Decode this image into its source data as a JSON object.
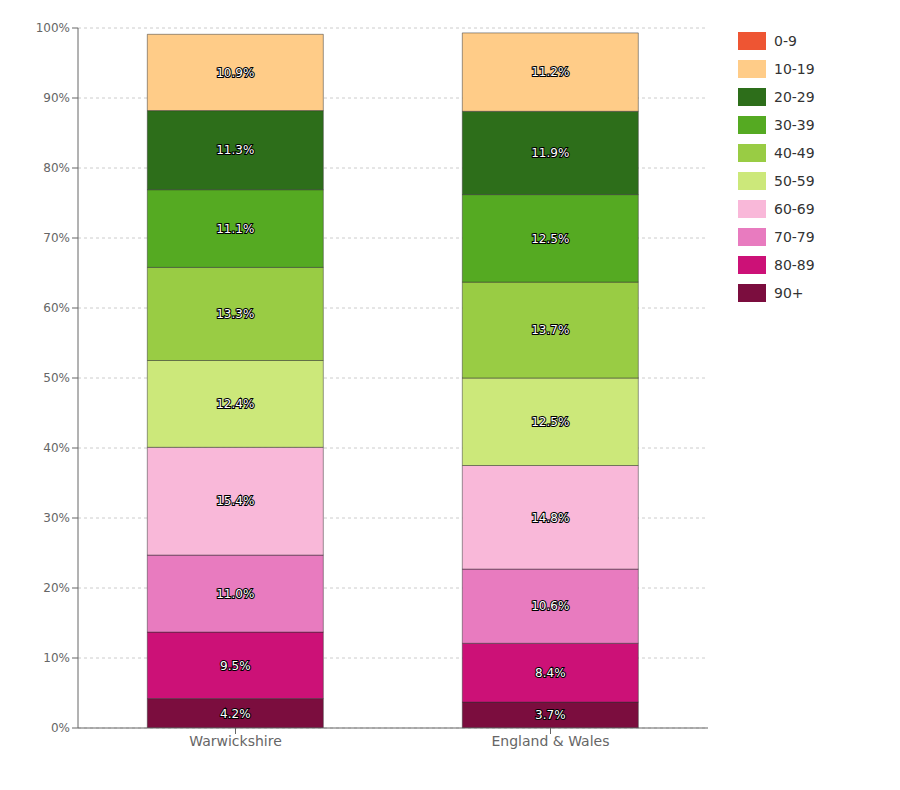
{
  "chart_data": {
    "type": "bar",
    "stacked": true,
    "categories": [
      "Warwickshire",
      "England & Wales"
    ],
    "series": [
      {
        "name": "90+",
        "color": "#7b0d3e",
        "values": [
          4.2,
          3.7
        ],
        "value_labels": [
          "4.2%",
          "3.7%"
        ]
      },
      {
        "name": "80-89",
        "color": "#cc1177",
        "values": [
          9.5,
          8.4
        ],
        "value_labels": [
          "9.5%",
          "8.4%"
        ]
      },
      {
        "name": "70-79",
        "color": "#e87bbf",
        "values": [
          11.0,
          10.6
        ],
        "value_labels": [
          "11.0%",
          "10.6%"
        ]
      },
      {
        "name": "60-69",
        "color": "#f9b8d9",
        "values": [
          15.4,
          14.8
        ],
        "value_labels": [
          "15.4%",
          "14.8%"
        ]
      },
      {
        "name": "50-59",
        "color": "#cce87a",
        "values": [
          12.4,
          12.5
        ],
        "value_labels": [
          "12.4%",
          "12.5%"
        ]
      },
      {
        "name": "40-49",
        "color": "#99cc44",
        "values": [
          13.3,
          13.7
        ],
        "value_labels": [
          "13.3%",
          "13.7%"
        ]
      },
      {
        "name": "30-39",
        "color": "#55aa22",
        "values": [
          11.1,
          12.5
        ],
        "value_labels": [
          "11.1%",
          "12.5%"
        ]
      },
      {
        "name": "20-29",
        "color": "#2d6e1a",
        "values": [
          11.3,
          11.9
        ],
        "value_labels": [
          "11.3%",
          "11.9%"
        ]
      },
      {
        "name": "10-19",
        "color": "#ffcc88",
        "values": [
          10.9,
          11.2
        ],
        "value_labels": [
          "10.9%",
          "11.2%"
        ]
      },
      {
        "name": "0-9",
        "color": "#ee5533",
        "values": [
          null,
          null
        ],
        "value_labels": [
          null,
          null
        ]
      }
    ],
    "ylim": [
      0,
      100
    ],
    "yticks": [
      {
        "value": 0,
        "label": "0%"
      },
      {
        "value": 10,
        "label": "10%"
      },
      {
        "value": 20,
        "label": "20%"
      },
      {
        "value": 30,
        "label": "30%"
      },
      {
        "value": 40,
        "label": "40%"
      },
      {
        "value": 50,
        "label": "50%"
      },
      {
        "value": 60,
        "label": "60%"
      },
      {
        "value": 70,
        "label": "70%"
      },
      {
        "value": 80,
        "label": "80%"
      },
      {
        "value": 90,
        "label": "90%"
      },
      {
        "value": 100,
        "label": "100%"
      }
    ],
    "grid": true,
    "legend": "right",
    "data_labels": true
  }
}
